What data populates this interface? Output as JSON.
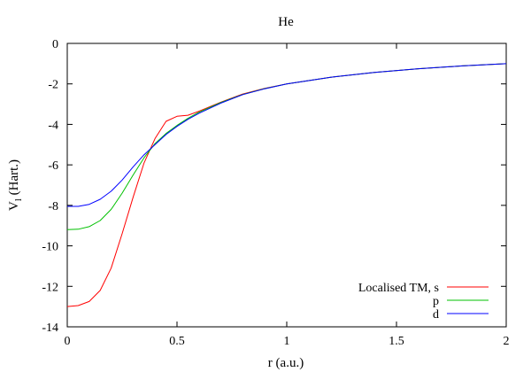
{
  "chart_data": {
    "type": "line",
    "title": "He",
    "xlabel": "r (a.u.)",
    "ylabel": {
      "main": "V",
      "sub": "l",
      "unit": " (Hart.)"
    },
    "xlim": [
      0,
      2
    ],
    "ylim": [
      -14,
      0
    ],
    "x_ticks": [
      0,
      0.5,
      1,
      1.5,
      2
    ],
    "x_tick_labels": [
      "0",
      "0.5",
      "1",
      "1.5",
      "2"
    ],
    "y_ticks": [
      0,
      -2,
      -4,
      -6,
      -8,
      -10,
      -12,
      -14
    ],
    "y_tick_labels": [
      "0",
      "-2",
      "-4",
      "-6",
      "-8",
      "-10",
      "-12",
      "-14"
    ],
    "grid": false,
    "legend_position": "bottom-right",
    "series": [
      {
        "name": "Localised TM, s",
        "color": "#ff0000",
        "x": [
          0,
          0.05,
          0.1,
          0.15,
          0.2,
          0.25,
          0.3,
          0.35,
          0.4,
          0.45,
          0.5,
          0.55,
          0.6,
          0.7,
          0.8,
          0.9,
          1.0,
          1.2,
          1.4,
          1.6,
          1.8,
          2.0
        ],
        "y": [
          -13.0,
          -12.95,
          -12.75,
          -12.2,
          -11.1,
          -9.4,
          -7.6,
          -5.9,
          -4.7,
          -3.85,
          -3.6,
          -3.55,
          -3.35,
          -2.9,
          -2.5,
          -2.22,
          -2.0,
          -1.67,
          -1.43,
          -1.25,
          -1.11,
          -1.0
        ]
      },
      {
        "name": "p",
        "color": "#00c000",
        "x": [
          0,
          0.05,
          0.1,
          0.15,
          0.2,
          0.25,
          0.3,
          0.35,
          0.4,
          0.45,
          0.5,
          0.55,
          0.6,
          0.7,
          0.8,
          0.9,
          1.0,
          1.2,
          1.4,
          1.6,
          1.8,
          2.0
        ],
        "y": [
          -9.2,
          -9.18,
          -9.05,
          -8.75,
          -8.2,
          -7.4,
          -6.5,
          -5.65,
          -4.95,
          -4.45,
          -4.05,
          -3.7,
          -3.4,
          -2.92,
          -2.52,
          -2.23,
          -2.0,
          -1.67,
          -1.43,
          -1.25,
          -1.11,
          -1.0
        ]
      },
      {
        "name": "d",
        "color": "#0000ff",
        "x": [
          0,
          0.05,
          0.1,
          0.15,
          0.2,
          0.25,
          0.3,
          0.35,
          0.4,
          0.45,
          0.5,
          0.55,
          0.6,
          0.7,
          0.8,
          0.9,
          1.0,
          1.2,
          1.4,
          1.6,
          1.8,
          2.0
        ],
        "y": [
          -8.05,
          -8.05,
          -7.95,
          -7.7,
          -7.3,
          -6.75,
          -6.1,
          -5.5,
          -5.0,
          -4.5,
          -4.1,
          -3.75,
          -3.45,
          -2.95,
          -2.53,
          -2.24,
          -2.0,
          -1.67,
          -1.43,
          -1.25,
          -1.11,
          -1.0
        ]
      }
    ]
  }
}
